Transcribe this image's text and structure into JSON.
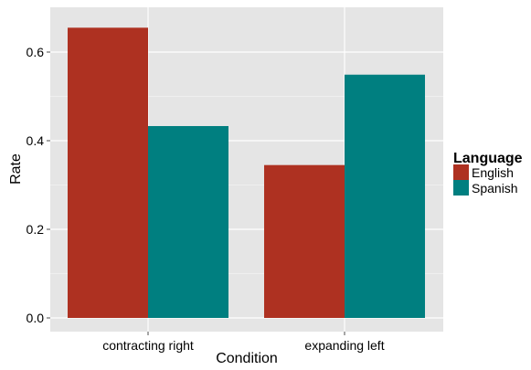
{
  "chart_data": {
    "type": "bar",
    "title": "",
    "xlabel": "Condition",
    "ylabel": "Rate",
    "categories": [
      "contracting right",
      "expanding left"
    ],
    "series": [
      {
        "name": "English",
        "values": [
          0.655,
          0.345
        ],
        "color": "#ae3121"
      },
      {
        "name": "Spanish",
        "values": [
          0.433,
          0.549
        ],
        "color": "#007f80"
      }
    ],
    "ylim": [
      0,
      0.68
    ],
    "yticks": [
      0.0,
      0.2,
      0.4,
      0.6
    ],
    "ytick_labels": [
      "0.0",
      "0.2",
      "0.4",
      "0.6"
    ],
    "grid": true,
    "legend": {
      "title": "Language",
      "placement": "right"
    },
    "colors": {
      "panel": "#e5e5e5",
      "grid": "#ffffff",
      "tick_text": "#000000"
    }
  }
}
